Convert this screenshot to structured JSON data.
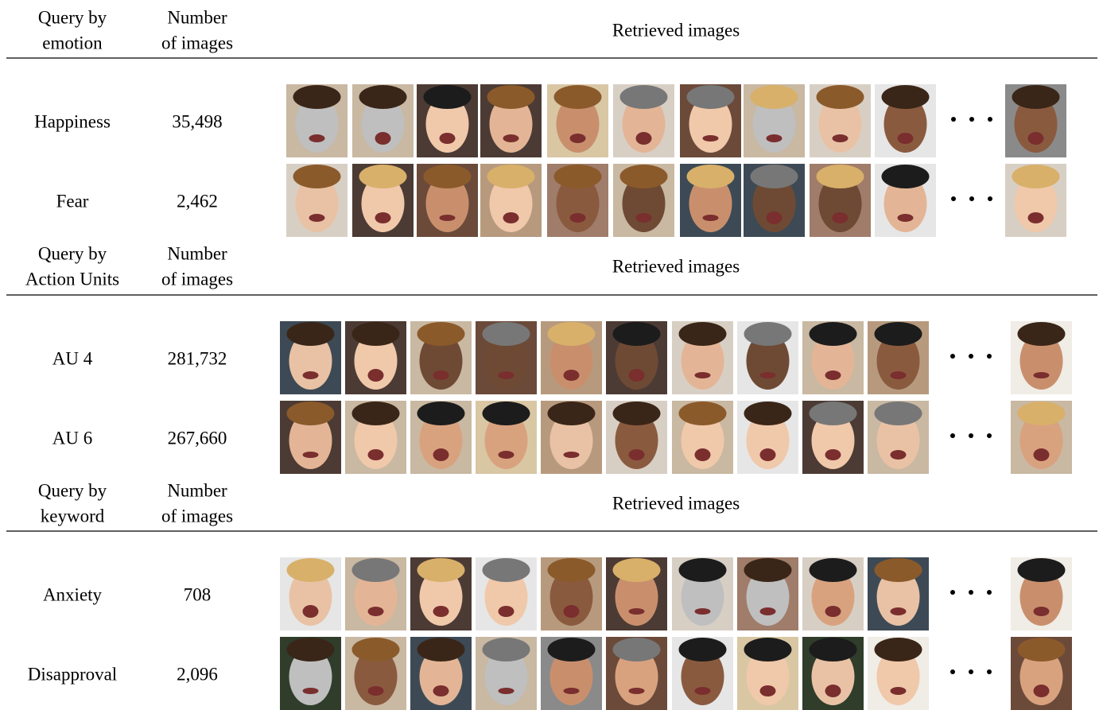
{
  "sections": [
    {
      "headers": {
        "query": [
          "Query by",
          "emotion"
        ],
        "count": [
          "Number",
          "of images"
        ],
        "retrieved": "Retrieved images"
      },
      "rows": [
        {
          "label": "Happiness",
          "count": "35,498"
        },
        {
          "label": "Fear",
          "count": "2,462"
        }
      ]
    },
    {
      "headers": {
        "query": [
          "Query by",
          "Action Units"
        ],
        "count": [
          "Number",
          "of images"
        ],
        "retrieved": "Retrieved images"
      },
      "rows": [
        {
          "label": "AU 4",
          "count": "281,732"
        },
        {
          "label": "AU 6",
          "count": "267,660"
        }
      ]
    },
    {
      "headers": {
        "query": [
          "Query by",
          "keyword"
        ],
        "count": [
          "Number",
          "of images"
        ],
        "retrieved": "Retrieved images"
      },
      "rows": [
        {
          "label": "Anxiety",
          "count": "708"
        },
        {
          "label": "Disapproval",
          "count": "2,096"
        }
      ]
    }
  ]
}
